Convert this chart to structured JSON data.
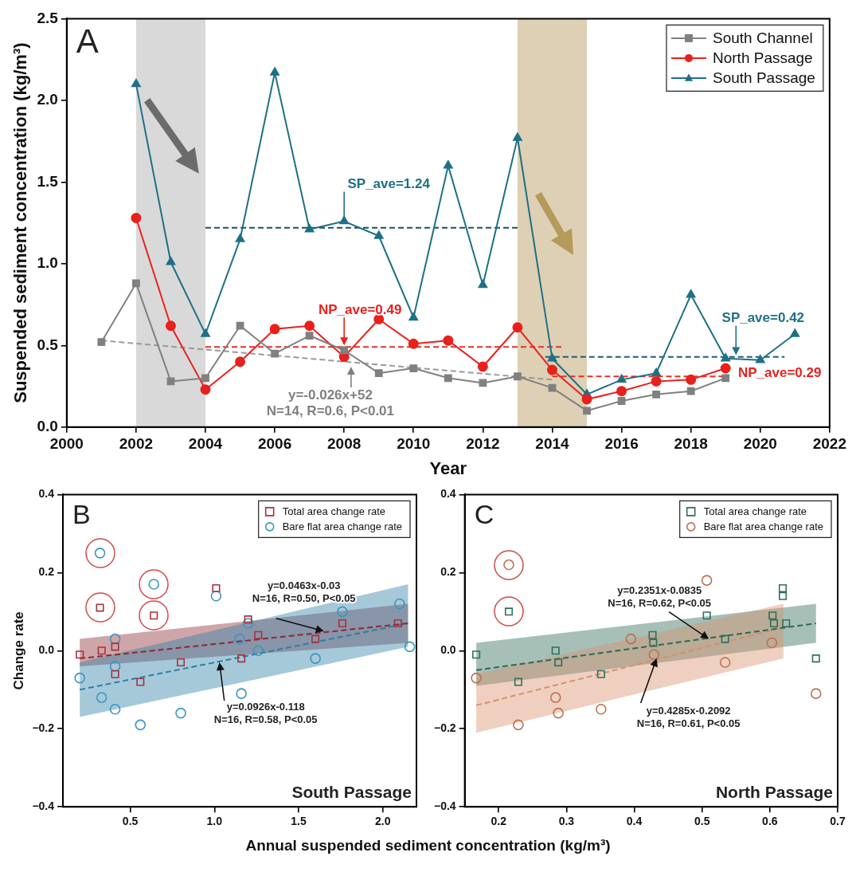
{
  "chart_data": [
    {
      "type": "line",
      "title": "A",
      "xlabel": "Year",
      "ylabel": "Suspended sediment concentration (kg/m³)",
      "xlim": [
        2000,
        2022
      ],
      "xticks": [
        2000,
        2002,
        2004,
        2006,
        2008,
        2010,
        2012,
        2014,
        2016,
        2018,
        2020,
        2022
      ],
      "ylim": [
        0,
        2.5
      ],
      "yticks": [
        {
          "value": 0,
          "label": "0.0"
        },
        0.5,
        {
          "value": 1,
          "label": "1.0"
        },
        1.5,
        {
          "value": 2,
          "label": "2.0"
        },
        2.5
      ],
      "legend": "top right",
      "series": [
        {
          "name": "South Channel",
          "color": "#808080",
          "marker": "square",
          "x": [
            2001,
            2002,
            2003,
            2004,
            2005,
            2006,
            2007,
            2008,
            2009,
            2010,
            2011,
            2012,
            2013,
            2014,
            2015,
            2016,
            2017,
            2018,
            2019
          ],
          "values": [
            0.52,
            0.88,
            0.28,
            0.3,
            0.62,
            0.45,
            0.56,
            0.47,
            0.33,
            0.36,
            0.3,
            0.27,
            0.31,
            0.24,
            0.1,
            0.16,
            0.2,
            0.22,
            0.3
          ]
        },
        {
          "name": "North Passage",
          "color": "#e8211c",
          "marker": "circle",
          "x": [
            2002,
            2003,
            2004,
            2005,
            2006,
            2007,
            2008,
            2009,
            2010,
            2011,
            2012,
            2013,
            2014,
            2015,
            2016,
            2017,
            2018,
            2019
          ],
          "values": [
            1.28,
            0.62,
            0.23,
            0.4,
            0.6,
            0.62,
            0.43,
            0.66,
            0.51,
            0.53,
            0.37,
            0.61,
            0.35,
            0.17,
            0.22,
            0.28,
            0.29,
            0.36
          ]
        },
        {
          "name": "South Passage",
          "color": "#1e7085",
          "marker": "triangle",
          "x": [
            2002,
            2003,
            2004,
            2005,
            2006,
            2007,
            2008,
            2009,
            2010,
            2011,
            2012,
            2013,
            2014,
            2015,
            2016,
            2017,
            2018,
            2019,
            2020,
            2021
          ],
          "values": [
            2.1,
            1.01,
            0.57,
            1.15,
            2.17,
            1.21,
            1.26,
            1.17,
            0.67,
            1.6,
            0.87,
            1.77,
            0.42,
            0.2,
            0.29,
            0.33,
            0.81,
            0.42,
            0.41,
            0.57
          ]
        },
        {
          "color": "#1f4f5f",
          "marker": "none",
          "line_style": "dashed",
          "x": [
            2004,
            2013
          ],
          "values": [
            1.22,
            1.22
          ]
        },
        {
          "color": "#e8302a",
          "marker": "none",
          "line_style": "dashed",
          "x": [
            2004,
            2014.3
          ],
          "values": [
            0.49,
            0.49
          ]
        },
        {
          "color": "#9a9a9a",
          "marker": "none",
          "line_style": "dashed",
          "x": [
            2001,
            2014
          ],
          "values": [
            0.53,
            0.29
          ]
        },
        {
          "color": "#1f5f6f",
          "marker": "none",
          "line_style": "dashed",
          "x": [
            2013.8,
            2020.7
          ],
          "values": [
            0.43,
            0.43
          ]
        },
        {
          "color": "#e8302a",
          "marker": "none",
          "line_style": "dashed",
          "x": [
            2014,
            2019
          ],
          "values": [
            0.31,
            0.31
          ]
        }
      ],
      "bands": [
        {
          "axis": "x",
          "from": 2002,
          "to": 2004,
          "color": "#d9d9d9"
        },
        {
          "axis": "x",
          "from": 2013,
          "to": 2015,
          "color": "#ddd0b4"
        }
      ],
      "annotations": [
        {
          "text": "SP_ave=1.24",
          "x": 2008,
          "y": 1.26
        },
        {
          "text": "NP_ave=0.49",
          "x": 2008,
          "y": 0.5
        },
        {
          "text": "y=-0.026x+52\nN=14, R=0.6, P<0.01",
          "x": 2008.2,
          "y": 0.37
        },
        {
          "text": "SP_ave=0.42",
          "x": 2019.3,
          "y": 0.44
        },
        {
          "text": "NP_ave=0.29",
          "x": 2019,
          "y": 0.31
        }
      ]
    },
    {
      "type": "scatter",
      "title": "B",
      "xlabel": "Annual suspended sediment concentration (kg/m³)",
      "ylabel": "Change rate",
      "xlim": [
        0.1,
        2.2
      ],
      "xticks": [
        0.5,
        {
          "value": 1,
          "label": "1.0"
        },
        1.5,
        {
          "value": 2,
          "label": "2.0"
        }
      ],
      "ylim": [
        -0.4,
        0.4
      ],
      "yticks": [
        {
          "value": -0.4,
          "label": "−0.4"
        },
        {
          "value": -0.2,
          "label": "−0.2"
        },
        {
          "value": 0,
          "label": "0.0"
        },
        0.2,
        0.4
      ],
      "legend": "top right",
      "series": [
        {
          "name": "Total area change rate",
          "color": "#a8323e",
          "marker": "square",
          "x": [
            0.2,
            0.32,
            0.33,
            0.41,
            0.41,
            0.56,
            0.64,
            0.8,
            1.01,
            1.16,
            1.2,
            1.26,
            1.6,
            1.76,
            2.09
          ],
          "values": [
            -0.01,
            0.11,
            0.0,
            0.01,
            -0.06,
            -0.08,
            0.09,
            -0.03,
            0.16,
            -0.02,
            0.08,
            0.04,
            0.03,
            0.07,
            0.07
          ]
        },
        {
          "name": "Bare flat area change rate",
          "color": "#3a96c0",
          "marker": "circle",
          "x": [
            0.2,
            0.32,
            0.33,
            0.41,
            0.41,
            0.41,
            0.56,
            0.64,
            0.8,
            1.01,
            1.15,
            1.16,
            1.2,
            1.26,
            1.6,
            1.76,
            2.1,
            2.16
          ],
          "values": [
            -0.07,
            0.25,
            -0.12,
            0.03,
            -0.04,
            -0.15,
            -0.19,
            0.17,
            -0.16,
            0.14,
            0.03,
            -0.11,
            0.07,
            0.0,
            -0.02,
            0.1,
            0.12,
            0.01
          ]
        },
        {
          "type": "line",
          "color": "#8b2a35",
          "marker": "none",
          "line_style": "dashed",
          "x": [
            0.2,
            2.15
          ],
          "values": [
            -0.02,
            0.07
          ],
          "lower": [
            -0.04,
            0.02
          ],
          "upper": [
            0.03,
            0.12
          ]
        },
        {
          "type": "line",
          "color": "#2a7fa8",
          "marker": "none",
          "line_style": "dashed",
          "x": [
            0.2,
            2.15
          ],
          "values": [
            -0.1,
            0.07
          ],
          "lower": [
            -0.17,
            0.01
          ],
          "upper": [
            -0.03,
            0.17
          ]
        }
      ],
      "annotations": [
        {
          "text": "y=0.0463x-0.03\nN=16, R=0.50, P<0.05",
          "x": 1.65,
          "y": 0.05
        },
        {
          "text": "y=0.0926x-0.118\nN=16, R=0.58, P<0.05",
          "x": 1.03,
          "y": -0.03
        },
        "South Passage"
      ]
    },
    {
      "type": "scatter",
      "title": "C",
      "xlim": [
        0.15,
        0.7
      ],
      "xticks": [
        0.2,
        0.3,
        0.4,
        0.5,
        0.6,
        0.7
      ],
      "ylim": [
        -0.4,
        0.4
      ],
      "yticks": [
        {
          "value": -0.4,
          "label": "−0.4"
        },
        {
          "value": -0.2,
          "label": "−0.2"
        },
        {
          "value": 0,
          "label": "0.0"
        },
        0.2,
        0.4
      ],
      "legend": "top right",
      "series": [
        {
          "name": "Total area change rate",
          "color": "#2f6f5e",
          "marker": "square",
          "x": [
            0.167,
            0.215,
            0.229,
            0.284,
            0.288,
            0.351,
            0.427,
            0.428,
            0.507,
            0.534,
            0.604,
            0.606,
            0.619,
            0.619,
            0.624,
            0.668
          ],
          "values": [
            -0.01,
            0.1,
            -0.08,
            0.0,
            -0.03,
            -0.06,
            0.04,
            0.02,
            0.09,
            0.03,
            0.09,
            0.07,
            0.16,
            0.14,
            0.07,
            -0.02
          ]
        },
        {
          "name": "Bare flat area change rate",
          "color": "#c0704e",
          "marker": "circle",
          "x": [
            0.167,
            0.215,
            0.229,
            0.284,
            0.288,
            0.351,
            0.395,
            0.429,
            0.507,
            0.534,
            0.603,
            0.668
          ],
          "values": [
            -0.07,
            0.22,
            -0.19,
            -0.12,
            -0.16,
            -0.15,
            0.03,
            -0.01,
            0.18,
            -0.03,
            0.02,
            -0.11
          ]
        },
        {
          "type": "line",
          "color": "#2a6a55",
          "marker": "none",
          "line_style": "dashed",
          "x": [
            0.167,
            0.668
          ],
          "values": [
            -0.05,
            0.07
          ],
          "lower": [
            -0.09,
            0.02
          ],
          "upper": [
            0.02,
            0.12
          ]
        },
        {
          "type": "line",
          "color": "#d8906a",
          "marker": "none",
          "line_style": "dashed",
          "x": [
            0.167,
            0.62
          ],
          "values": [
            -0.14,
            0.06
          ],
          "lower": [
            -0.21,
            -0.02
          ],
          "upper": [
            -0.06,
            0.12
          ]
        }
      ],
      "annotations": [
        {
          "text": "y=0.2351x-0.0835\nN=16, R=0.62, P<0.05",
          "x": 0.51,
          "y": 0.03
        },
        {
          "text": "y=0.4285x-0.2092\nN=16, R=0.61, P<0.05",
          "x": 0.433,
          "y": -0.02
        },
        "North Passage"
      ]
    }
  ]
}
